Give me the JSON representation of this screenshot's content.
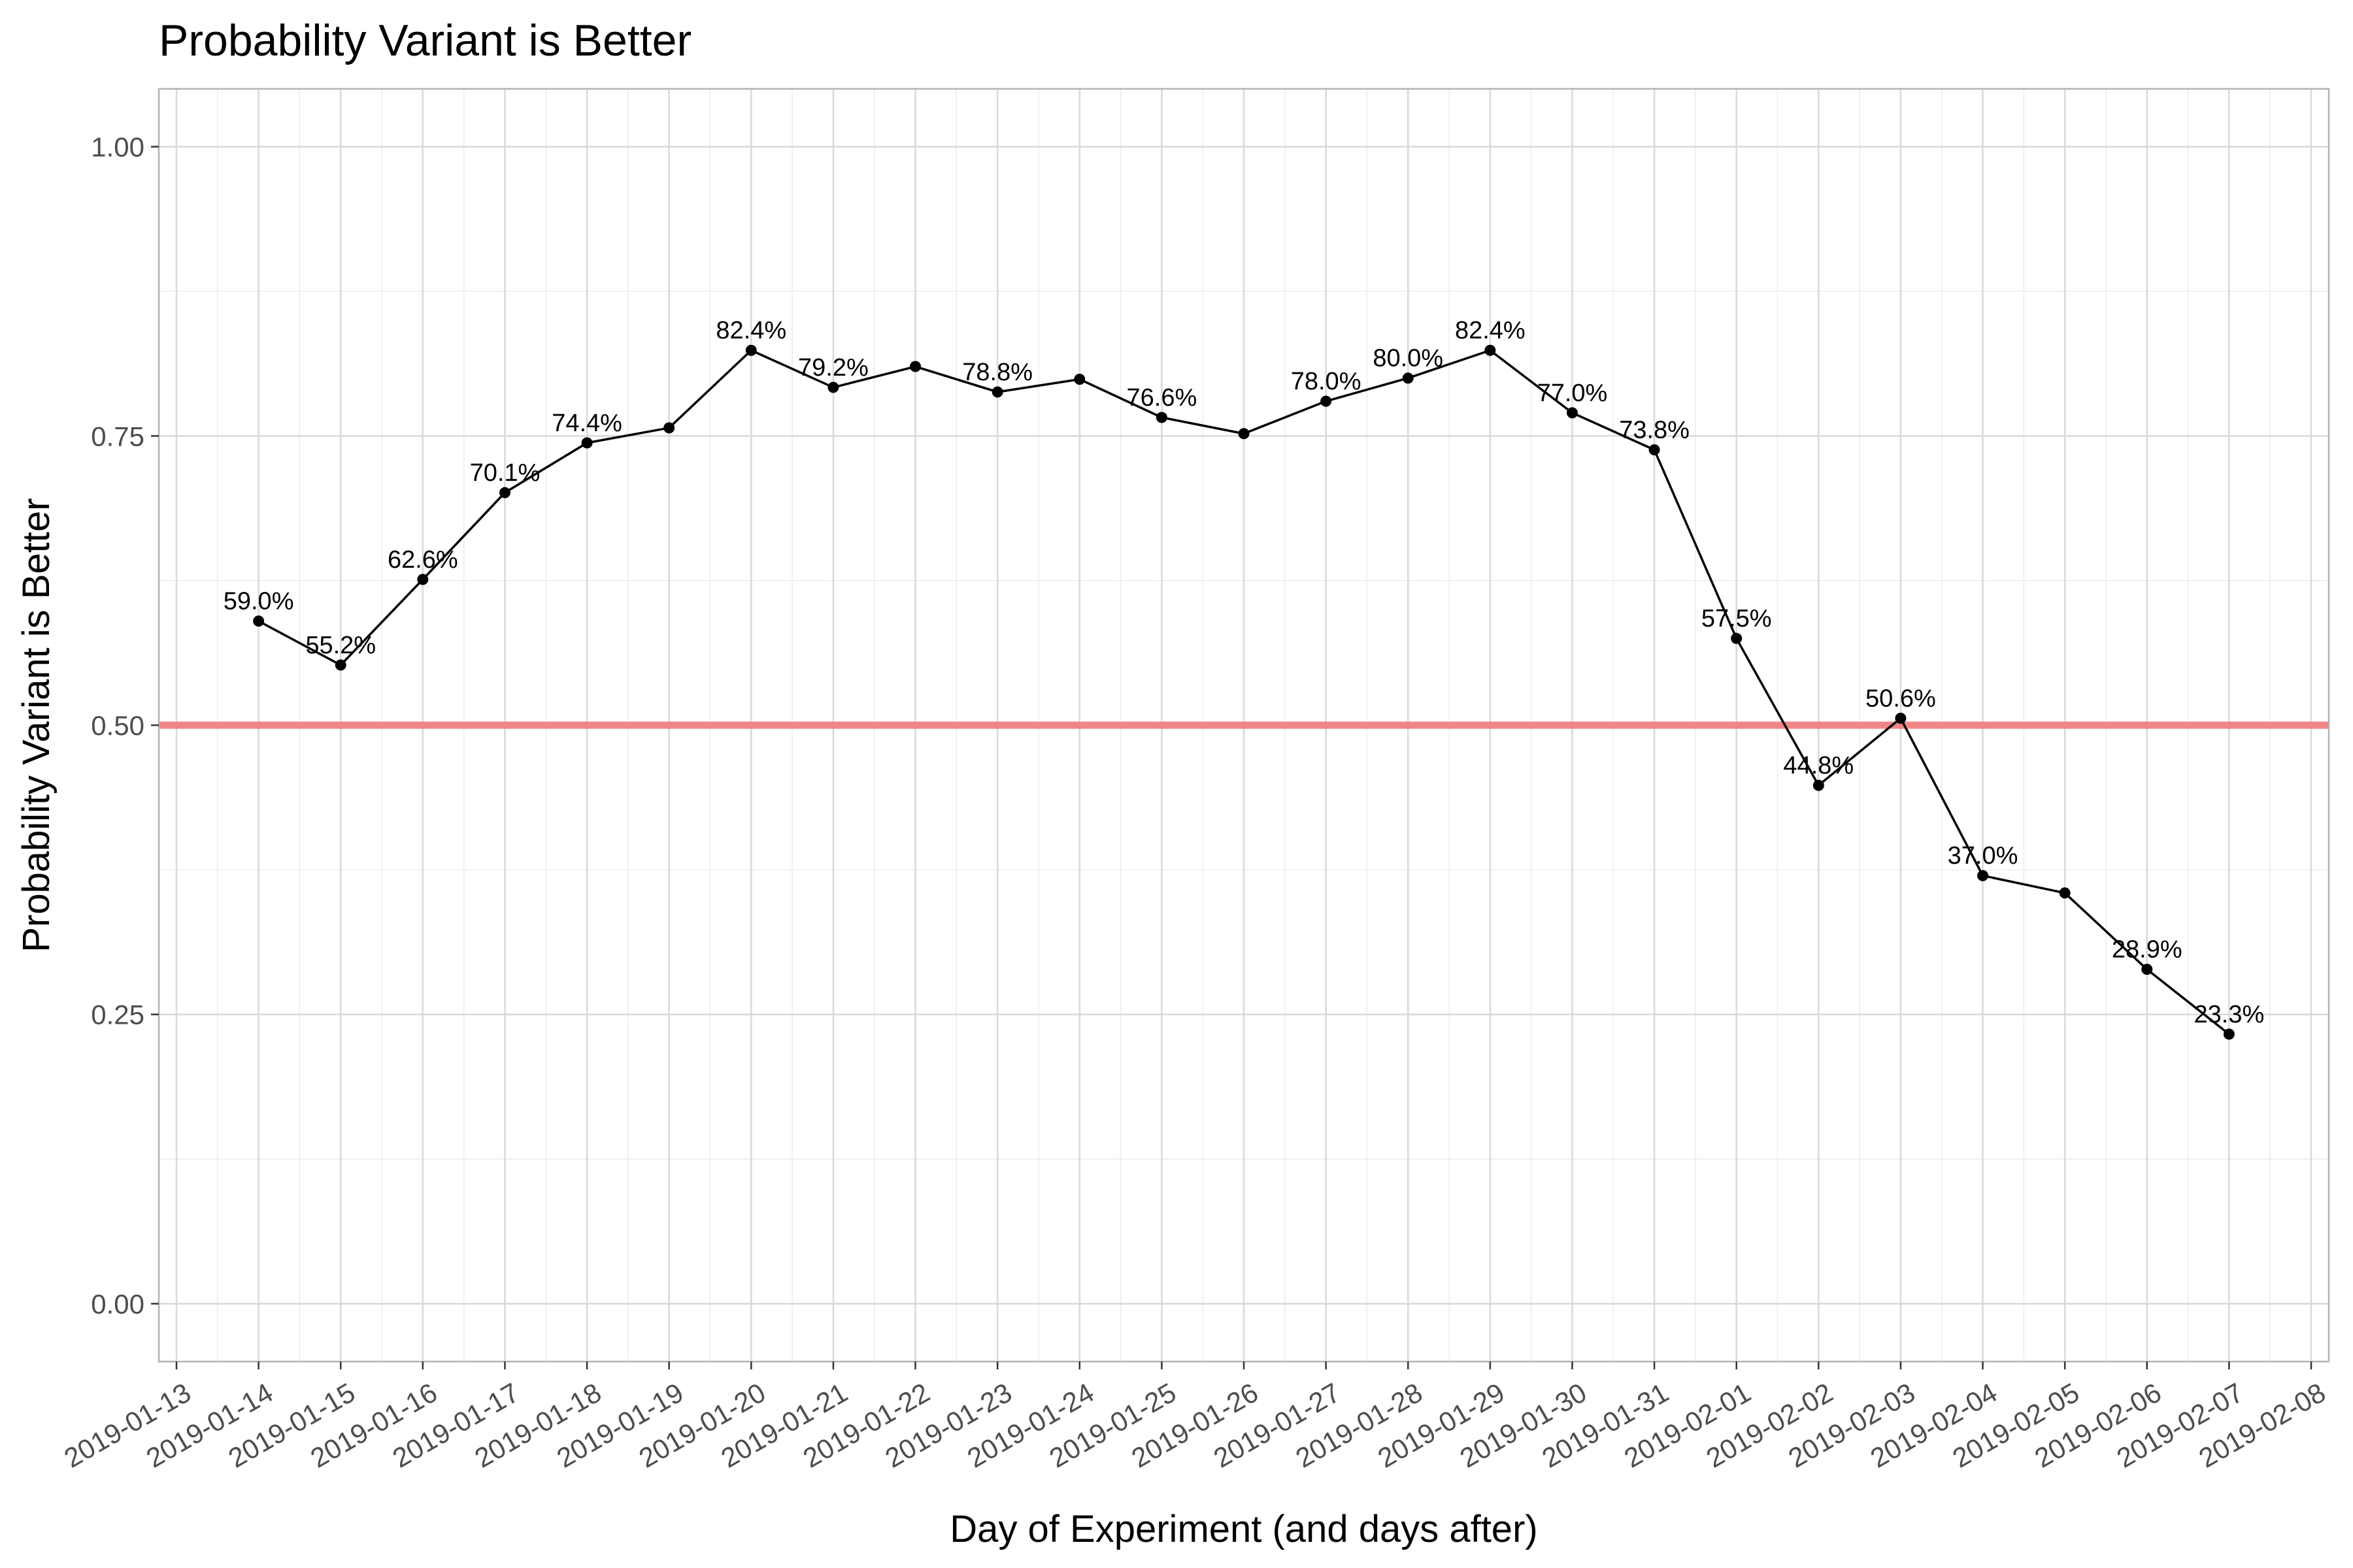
{
  "chart_data": {
    "type": "line",
    "title": "Probability Variant is Better",
    "xlabel": "Day of Experiment (and days after)",
    "ylabel": "Probability Variant is Better",
    "ylim": [
      -0.05,
      1.05
    ],
    "xlim": [
      "2019-01-13",
      "2019-02-08"
    ],
    "grid": true,
    "legend": "none",
    "y_ticks": [
      "0.00",
      "0.25",
      "0.50",
      "0.75",
      "1.00"
    ],
    "x_ticks": [
      "2019-01-13",
      "2019-01-14",
      "2019-01-15",
      "2019-01-16",
      "2019-01-17",
      "2019-01-18",
      "2019-01-19",
      "2019-01-20",
      "2019-01-21",
      "2019-01-22",
      "2019-01-23",
      "2019-01-24",
      "2019-01-25",
      "2019-01-26",
      "2019-01-27",
      "2019-01-28",
      "2019-01-29",
      "2019-01-30",
      "2019-01-31",
      "2019-02-01",
      "2019-02-02",
      "2019-02-03",
      "2019-02-04",
      "2019-02-05",
      "2019-02-06",
      "2019-02-07",
      "2019-02-08"
    ],
    "reference_line": {
      "y": 0.5,
      "color": "#f08080"
    },
    "line_color": "#000000",
    "series": [
      {
        "x": [
          "2019-01-14",
          "2019-01-15",
          "2019-01-16",
          "2019-01-17",
          "2019-01-18",
          "2019-01-19",
          "2019-01-20",
          "2019-01-21",
          "2019-01-22",
          "2019-01-23",
          "2019-01-24",
          "2019-01-25",
          "2019-01-26",
          "2019-01-27",
          "2019-01-28",
          "2019-01-29",
          "2019-01-30",
          "2019-01-31",
          "2019-02-01",
          "2019-02-02",
          "2019-02-03",
          "2019-02-04",
          "2019-02-05",
          "2019-02-06",
          "2019-02-07"
        ],
        "values": [
          0.59,
          0.552,
          0.626,
          0.701,
          0.744,
          0.757,
          0.824,
          0.792,
          0.81,
          0.788,
          0.799,
          0.766,
          0.752,
          0.78,
          0.8,
          0.824,
          0.77,
          0.738,
          0.575,
          0.448,
          0.506,
          0.37,
          0.355,
          0.289,
          0.233
        ],
        "labels": [
          "59.0%",
          "55.2%",
          "62.6%",
          "70.1%",
          "74.4%",
          "",
          "82.4%",
          "79.2%",
          "",
          "78.8%",
          "",
          "76.6%",
          "",
          "78.0%",
          "80.0%",
          "82.4%",
          "77.0%",
          "73.8%",
          "57.5%",
          "44.8%",
          "50.6%",
          "37.0%",
          "",
          "28.9%",
          "23.3%"
        ]
      }
    ]
  }
}
